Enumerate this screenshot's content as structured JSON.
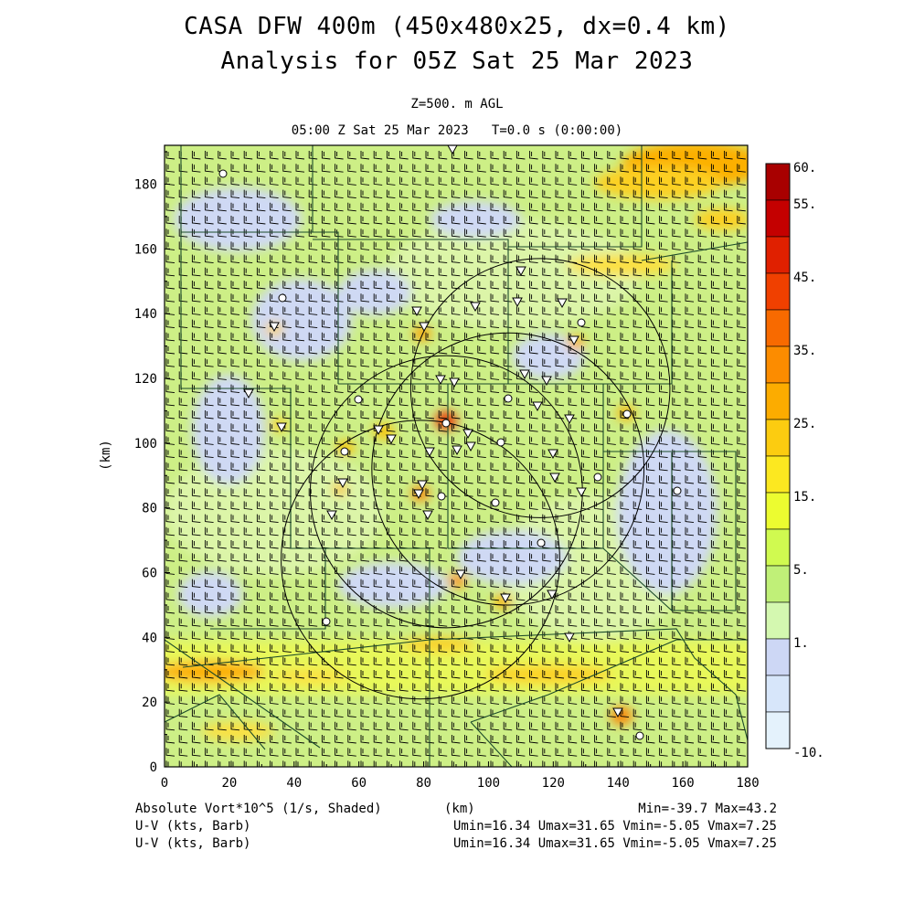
{
  "title": {
    "line1": "CASA DFW 400m (450x480x25, dx=0.4 km)",
    "line2": "Analysis for 05Z Sat 25 Mar 2023"
  },
  "subtitle": {
    "level": "Z=500. m AGL",
    "time": "05:00 Z Sat 25 Mar 2023   T=0.0 s (0:00:00)"
  },
  "axes": {
    "x_label": "(km)",
    "y_label": "(km)",
    "x_ticks": [
      "0",
      "20",
      "40",
      "60",
      "80",
      "100",
      "120",
      "140",
      "160",
      "180"
    ],
    "y_ticks": [
      "0",
      "20",
      "40",
      "60",
      "80",
      "100",
      "120",
      "140",
      "160",
      "180"
    ],
    "x_range": [
      0,
      180
    ],
    "y_range": [
      0,
      192
    ]
  },
  "colorbar": {
    "labels": [
      "60.",
      "55.",
      "45.",
      "35.",
      "25.",
      "15.",
      "5.",
      "1.",
      "-10."
    ],
    "colors": [
      "#a80000",
      "#c40000",
      "#e02000",
      "#f04000",
      "#f86a00",
      "#fc8c00",
      "#fcac00",
      "#fccc10",
      "#fce820",
      "#ecfc30",
      "#d0fa50",
      "#c0f078",
      "#d4f8b0",
      "#cdd7f5",
      "#d7e6fa",
      "#e4f2fc"
    ]
  },
  "footer": {
    "field1": "Absolute Vort*10^5 (1/s, Shaded)",
    "xunit": "(km)",
    "minmax": "Min=-39.7 Max=43.2",
    "field2": "U-V (kts, Barb)",
    "stats2": "Umin=16.34 Umax=31.65 Vmin=-5.05 Vmax=7.25",
    "field3": "U-V (kts, Barb)",
    "stats3": "Umin=16.34 Umax=31.65 Vmin=-5.05 Vmax=7.25"
  },
  "radar_rings_km": [
    {
      "cx": 79,
      "cy": 64,
      "r": 43
    },
    {
      "cx": 106,
      "cy": 92,
      "r": 42
    },
    {
      "cx": 116,
      "cy": 117,
      "r": 40
    },
    {
      "cx": 87,
      "cy": 85,
      "r": 42
    }
  ]
}
